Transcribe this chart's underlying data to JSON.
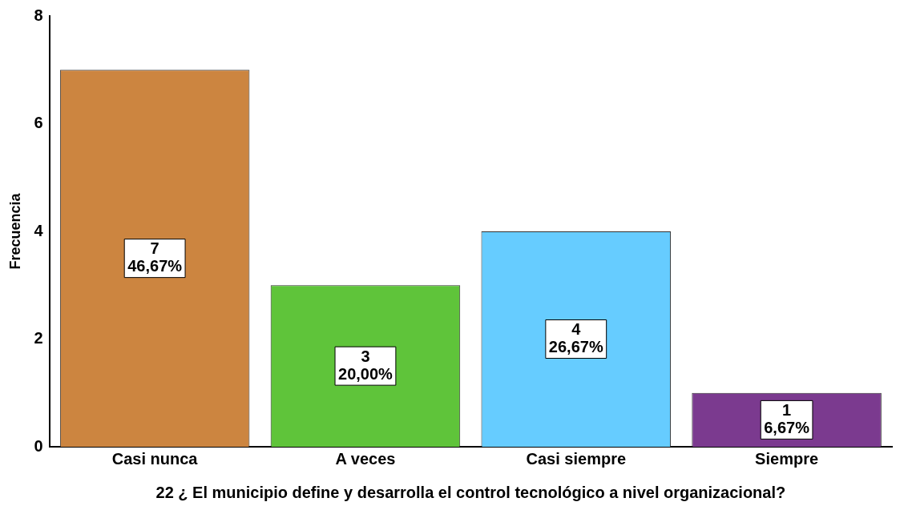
{
  "chart_data": {
    "type": "bar",
    "xlabel": "22 ¿ El municipio define y desarrolla el control tecnológico a nivel organizacional?",
    "ylabel": "Frecuencia",
    "categories": [
      "Casi nunca",
      "A veces",
      "Casi siempre",
      "Siempre"
    ],
    "values": [
      7,
      3,
      4,
      1
    ],
    "colors": [
      "#cc8540",
      "#5fc43a",
      "#66ccff",
      "#7b3a8f"
    ],
    "value_labels": [
      "7\n46,67%",
      "3\n20,00%",
      "4\n26,67%",
      "1\n6,67%"
    ],
    "ylim": [
      0,
      8
    ],
    "yticks": [
      0,
      2,
      4,
      6,
      8
    ],
    "grid": false,
    "legend": false
  }
}
